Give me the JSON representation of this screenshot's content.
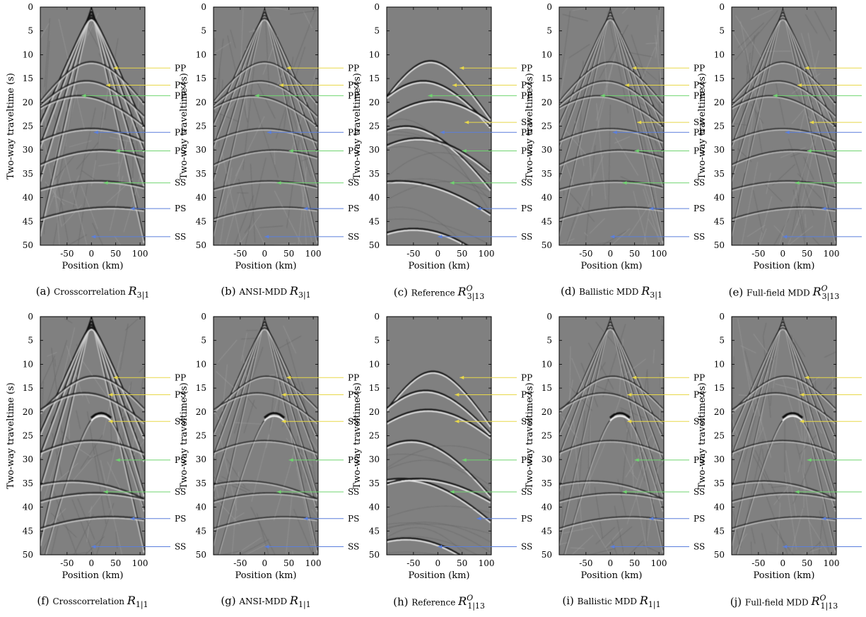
{
  "figure": {
    "ylabel": "Two-way traveltime (s)",
    "xlabel": "Position (km)",
    "xticks": [
      "-50",
      "0",
      "50",
      "100"
    ],
    "yticks": [
      "0",
      "5",
      "10",
      "15",
      "20",
      "25",
      "30",
      "35",
      "40",
      "45",
      "50"
    ],
    "colors": {
      "yellow": "#e8d84a",
      "green": "#6fd46f",
      "blue": "#5b7fdc",
      "background": "#808080"
    }
  },
  "rows": [
    {
      "events": [
        {
          "t": 12.8,
          "label": "PP",
          "color": "yellow",
          "start_km": 45
        },
        {
          "t": 16.4,
          "label": "PS",
          "color": "yellow",
          "start_km": 30
        },
        {
          "t": 18.6,
          "label": "PP",
          "color": "green",
          "start_km": -20
        },
        {
          "t": 24.2,
          "label": "SS",
          "color": "yellow",
          "start_km": 55
        },
        {
          "t": 26.3,
          "label": "PP",
          "color": "blue",
          "start_km": 5
        },
        {
          "t": 30.2,
          "label": "PS",
          "color": "green",
          "start_km": 50
        },
        {
          "t": 36.9,
          "label": "SS",
          "color": "green",
          "start_km": 25
        },
        {
          "t": 42.3,
          "label": "PS",
          "color": "blue",
          "start_km": 80
        },
        {
          "t": 48.2,
          "label": "SS",
          "color": "blue",
          "start_km": 0
        }
      ],
      "panels": [
        {
          "id": "a",
          "letter": "(a)",
          "text": "Crosscorrelation",
          "sym": "R",
          "sup": "",
          "sub": "3|1",
          "hidden": [
            3
          ]
        },
        {
          "id": "b",
          "letter": "(b)",
          "text": "ANSI-MDD",
          "sym": "R",
          "sup": "",
          "sub": "3|1",
          "hidden": [
            3
          ]
        },
        {
          "id": "c",
          "letter": "(c)",
          "text": "Reference",
          "sym": "R",
          "sup": "O",
          "sub": "3|13",
          "hidden": []
        },
        {
          "id": "d",
          "letter": "(d)",
          "text": "Ballistic MDD",
          "sym": "R",
          "sup": "",
          "sub": "3|1",
          "hidden": []
        },
        {
          "id": "e",
          "letter": "(e)",
          "text": "Full-field MDD",
          "sym": "R",
          "sup": "O",
          "sub": "3|13",
          "hidden": []
        }
      ]
    },
    {
      "events": [
        {
          "t": 12.8,
          "label": "PP",
          "color": "yellow",
          "start_km": 45
        },
        {
          "t": 16.4,
          "label": "PS",
          "color": "yellow",
          "start_km": 35
        },
        {
          "t": 22.0,
          "label": "SS",
          "color": "yellow",
          "start_km": 35
        },
        {
          "t": 30.1,
          "label": "PS",
          "color": "green",
          "start_km": 50
        },
        {
          "t": 36.8,
          "label": "SS",
          "color": "green",
          "start_km": 25
        },
        {
          "t": 42.4,
          "label": "PS",
          "color": "blue",
          "start_km": 80
        },
        {
          "t": 48.3,
          "label": "SS",
          "color": "blue",
          "start_km": 0
        }
      ],
      "panels": [
        {
          "id": "f",
          "letter": "(f)",
          "text": "Crosscorrelation",
          "sym": "R",
          "sup": "",
          "sub": "1|1",
          "hidden": []
        },
        {
          "id": "g",
          "letter": "(g)",
          "text": "ANSI-MDD",
          "sym": "R",
          "sup": "",
          "sub": "1|1",
          "hidden": []
        },
        {
          "id": "h",
          "letter": "(h)",
          "text": "Reference",
          "sym": "R",
          "sup": "O",
          "sub": "1|13",
          "hidden": []
        },
        {
          "id": "i",
          "letter": "(i)",
          "text": "Ballistic MDD",
          "sym": "R",
          "sup": "",
          "sub": "1|1",
          "hidden": []
        },
        {
          "id": "j",
          "letter": "(j)",
          "text": "Full-field MDD",
          "sym": "R",
          "sup": "O",
          "sub": "1|13",
          "hidden": []
        }
      ]
    }
  ]
}
